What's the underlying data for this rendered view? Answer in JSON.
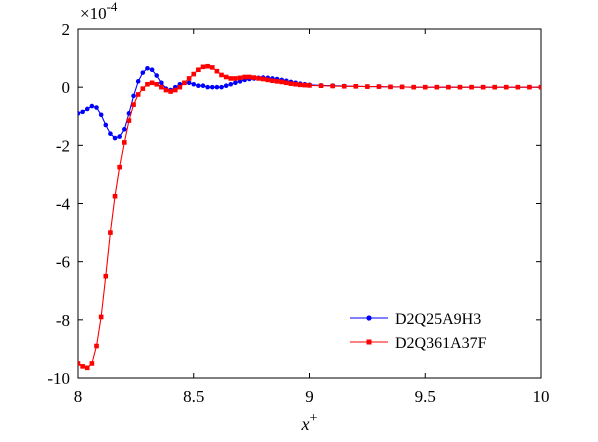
{
  "chart_data": {
    "type": "line",
    "title": "",
    "xlabel": "x",
    "xlabel_superscript": "+",
    "ylabel": "",
    "y_multiplier": {
      "base": "×10",
      "exponent": "-4"
    },
    "xlim": [
      8,
      10
    ],
    "ylim": [
      -10,
      2
    ],
    "x_ticks": [
      8,
      8.5,
      9,
      9.5,
      10
    ],
    "x_tick_labels": [
      "8",
      "8.5",
      "9",
      "9.5",
      "10"
    ],
    "y_ticks": [
      -10,
      -8,
      -6,
      -4,
      -2,
      0,
      2
    ],
    "y_tick_labels": [
      "-10",
      "-8",
      "-6",
      "-4",
      "-2",
      "0",
      "2"
    ],
    "grid": false,
    "legend_position": "lower-right",
    "series": [
      {
        "name": "D2Q25A9H3",
        "color": "#0000ff",
        "marker": "circle",
        "x": [
          8.0,
          8.02,
          8.04,
          8.06,
          8.08,
          8.1,
          8.12,
          8.14,
          8.16,
          8.18,
          8.2,
          8.22,
          8.24,
          8.26,
          8.28,
          8.3,
          8.32,
          8.34,
          8.36,
          8.38,
          8.4,
          8.42,
          8.44,
          8.46,
          8.48,
          8.5,
          8.52,
          8.54,
          8.56,
          8.58,
          8.6,
          8.62,
          8.64,
          8.66,
          8.68,
          8.7,
          8.72,
          8.74,
          8.76,
          8.78,
          8.8,
          8.82,
          8.84,
          8.86,
          8.88,
          8.9,
          8.92,
          8.94,
          8.96,
          8.98,
          9.0,
          9.05,
          9.1,
          9.15,
          9.2,
          9.25,
          9.3,
          9.35,
          9.4,
          9.45,
          9.5,
          9.55,
          9.6,
          9.65,
          9.7,
          9.75,
          9.8,
          9.85,
          9.9,
          9.95,
          10.0
        ],
        "y": [
          -0.9,
          -0.85,
          -0.75,
          -0.65,
          -0.7,
          -0.95,
          -1.3,
          -1.6,
          -1.75,
          -1.7,
          -1.45,
          -0.9,
          -0.3,
          0.2,
          0.5,
          0.65,
          0.6,
          0.4,
          0.15,
          -0.05,
          -0.1,
          0.0,
          0.1,
          0.15,
          0.15,
          0.1,
          0.05,
          0.05,
          0.0,
          0.0,
          0.0,
          0.0,
          0.05,
          0.1,
          0.15,
          0.2,
          0.25,
          0.28,
          0.3,
          0.32,
          0.33,
          0.32,
          0.3,
          0.28,
          0.25,
          0.22,
          0.18,
          0.15,
          0.12,
          0.1,
          0.08,
          0.06,
          0.05,
          0.04,
          0.03,
          0.02,
          0.02,
          0.01,
          0.01,
          0.0,
          0.0,
          0.0,
          0.0,
          0.0,
          0.0,
          0.0,
          0.0,
          0.0,
          0.0,
          0.0,
          0.0
        ]
      },
      {
        "name": "D2Q361A37F",
        "color": "#ff0000",
        "marker": "square",
        "x": [
          8.0,
          8.02,
          8.04,
          8.06,
          8.08,
          8.1,
          8.12,
          8.14,
          8.16,
          8.18,
          8.2,
          8.22,
          8.24,
          8.26,
          8.28,
          8.3,
          8.32,
          8.34,
          8.36,
          8.38,
          8.4,
          8.42,
          8.44,
          8.46,
          8.48,
          8.5,
          8.52,
          8.54,
          8.56,
          8.58,
          8.6,
          8.62,
          8.64,
          8.66,
          8.68,
          8.7,
          8.72,
          8.74,
          8.76,
          8.78,
          8.8,
          8.82,
          8.84,
          8.86,
          8.88,
          8.9,
          8.92,
          8.94,
          8.96,
          8.98,
          9.0,
          9.05,
          9.1,
          9.15,
          9.2,
          9.25,
          9.3,
          9.35,
          9.4,
          9.45,
          9.5,
          9.55,
          9.6,
          9.65,
          9.7,
          9.75,
          9.8,
          9.85,
          9.9,
          9.95,
          10.0
        ],
        "y": [
          -9.5,
          -9.6,
          -9.65,
          -9.5,
          -8.9,
          -7.9,
          -6.5,
          -5.0,
          -3.75,
          -2.75,
          -1.9,
          -1.15,
          -0.6,
          -0.25,
          -0.05,
          0.1,
          0.15,
          0.1,
          0.0,
          -0.1,
          -0.15,
          -0.1,
          0.0,
          0.15,
          0.3,
          0.45,
          0.6,
          0.7,
          0.72,
          0.68,
          0.55,
          0.42,
          0.35,
          0.3,
          0.3,
          0.32,
          0.35,
          0.35,
          0.33,
          0.3,
          0.28,
          0.25,
          0.22,
          0.2,
          0.18,
          0.15,
          0.12,
          0.1,
          0.08,
          0.07,
          0.06,
          0.05,
          0.04,
          0.03,
          0.03,
          0.02,
          0.02,
          0.01,
          0.01,
          0.0,
          0.0,
          0.0,
          0.0,
          0.0,
          0.0,
          0.0,
          0.0,
          0.0,
          0.0,
          0.0,
          0.0
        ]
      }
    ]
  }
}
